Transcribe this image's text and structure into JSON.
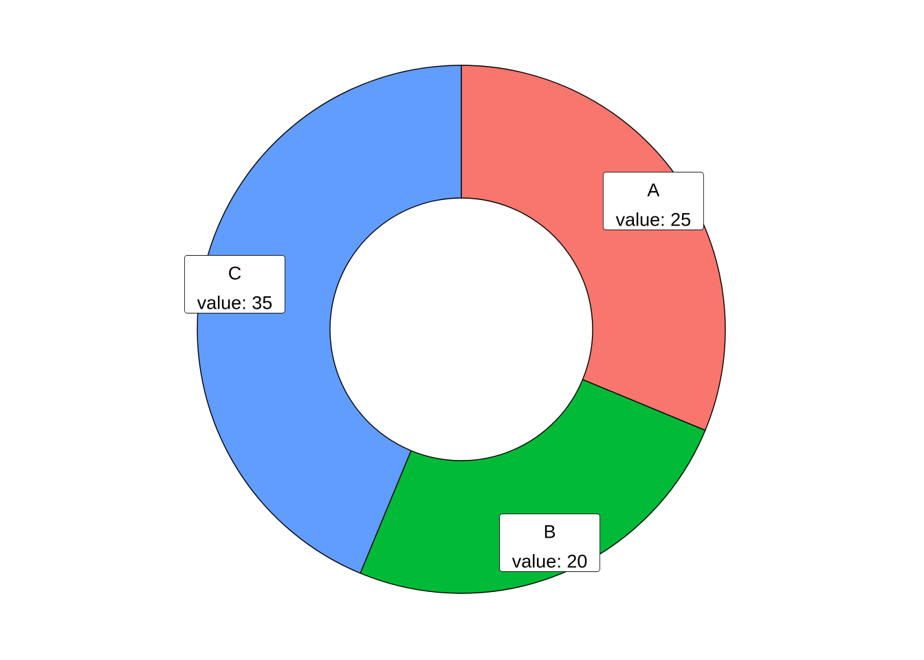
{
  "chart_data": {
    "type": "pie",
    "donut": true,
    "categories": [
      "A",
      "B",
      "C"
    ],
    "values": [
      25,
      20,
      35
    ],
    "colors": [
      "#F8766D",
      "#00BA38",
      "#619CFF"
    ],
    "value_label_prefix": "value: ",
    "labels": [
      {
        "name": "A",
        "value_text": "value: 25"
      },
      {
        "name": "B",
        "value_text": "value: 20"
      },
      {
        "name": "C",
        "value_text": "value: 35"
      }
    ],
    "start_angle": "top",
    "direction": "clockwise",
    "legend": "none",
    "grid": false,
    "title": "",
    "xlabel": "",
    "ylabel": ""
  }
}
